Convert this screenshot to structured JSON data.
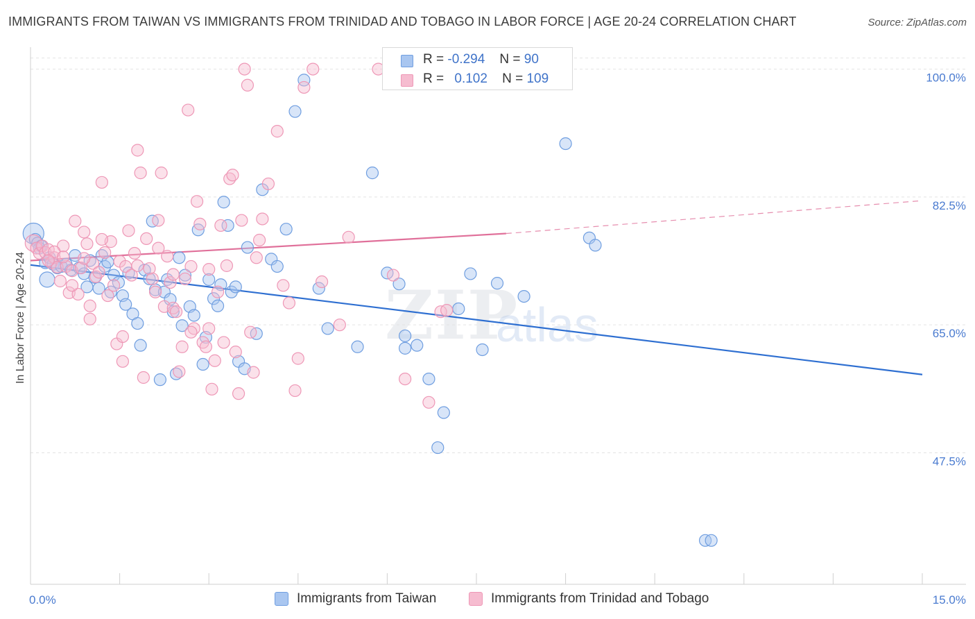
{
  "header": {
    "title": "IMMIGRANTS FROM TAIWAN VS IMMIGRANTS FROM TRINIDAD AND TOBAGO IN LABOR FORCE | AGE 20-24 CORRELATION CHART",
    "source": "Source: ZipAtlas.com"
  },
  "legend": {
    "taiwan": {
      "r_label": "R =",
      "r_value": "-0.294",
      "n_label": "N =",
      "n_value": "90"
    },
    "trinidad": {
      "r_label": "R =",
      "r_value": "0.102",
      "n_label": "N =",
      "n_value": "109"
    }
  },
  "watermark": {
    "zip": "ZIP",
    "atlas": "atlas"
  },
  "colors": {
    "taiwan_fill": "#a9c6f0",
    "taiwan_stroke": "#6f9ee0",
    "taiwan_line": "#2e6fd1",
    "trinidad_fill": "#f6bcd0",
    "trinidad_stroke": "#ee97b6",
    "trinidad_line": "#e0709a",
    "grid": "#e3e3e3",
    "tick_text": "#4a7bd0"
  },
  "chart_data": {
    "type": "scatter",
    "title": "IMMIGRANTS FROM TAIWAN VS IMMIGRANTS FROM TRINIDAD AND TOBAGO IN LABOR FORCE | AGE 20-24 CORRELATION CHART",
    "xlabel": "",
    "ylabel": "In Labor Force | Age 20-24",
    "xlim": [
      0,
      15
    ],
    "ylim": [
      29.5,
      103
    ],
    "x_tick_labels": [
      {
        "value": 0,
        "label": "0.0%"
      },
      {
        "value": 15,
        "label": "15.0%"
      }
    ],
    "y_ticks": [
      {
        "value": 100,
        "label": "100.0%"
      },
      {
        "value": 82.5,
        "label": "82.5%"
      },
      {
        "value": 65,
        "label": "65.0%"
      },
      {
        "value": 47.5,
        "label": "47.5%"
      }
    ],
    "grid": "horizontal dashed",
    "legend_placement": "top-center",
    "series": [
      {
        "name": "Immigrants from Taiwan",
        "color": "#a9c6f0",
        "trend": {
          "x": [
            0,
            15
          ],
          "y": [
            73.2,
            58.2
          ],
          "style": "solid"
        },
        "points": [
          [
            0.05,
            77.5
          ],
          [
            0.08,
            76.7
          ],
          [
            0.12,
            76.2
          ],
          [
            0.15,
            75.5
          ],
          [
            0.18,
            75.8
          ],
          [
            0.25,
            73.5
          ],
          [
            0.28,
            71.2
          ],
          [
            0.32,
            74.2
          ],
          [
            0.38,
            73.3
          ],
          [
            0.45,
            72.8
          ],
          [
            0.52,
            73.0
          ],
          [
            0.6,
            73.3
          ],
          [
            0.68,
            72.5
          ],
          [
            0.75,
            74.5
          ],
          [
            0.82,
            72.8
          ],
          [
            0.9,
            72.0
          ],
          [
            0.95,
            70.2
          ],
          [
            1.0,
            73.8
          ],
          [
            1.08,
            71.5
          ],
          [
            1.15,
            70.0
          ],
          [
            1.2,
            74.5
          ],
          [
            1.25,
            73.0
          ],
          [
            1.3,
            73.6
          ],
          [
            1.35,
            69.5
          ],
          [
            1.4,
            71.8
          ],
          [
            1.48,
            70.8
          ],
          [
            1.55,
            69.0
          ],
          [
            1.6,
            67.8
          ],
          [
            1.65,
            72.1
          ],
          [
            1.72,
            66.5
          ],
          [
            1.8,
            65.2
          ],
          [
            1.85,
            62.2
          ],
          [
            1.92,
            72.5
          ],
          [
            2.0,
            71.3
          ],
          [
            2.05,
            79.2
          ],
          [
            2.1,
            69.8
          ],
          [
            2.18,
            57.5
          ],
          [
            2.25,
            69.5
          ],
          [
            2.3,
            71.2
          ],
          [
            2.35,
            68.5
          ],
          [
            2.4,
            66.8
          ],
          [
            2.45,
            58.3
          ],
          [
            2.5,
            74.2
          ],
          [
            2.55,
            64.9
          ],
          [
            2.6,
            71.8
          ],
          [
            2.68,
            67.5
          ],
          [
            2.75,
            66.3
          ],
          [
            2.82,
            78.0
          ],
          [
            2.9,
            59.6
          ],
          [
            2.95,
            63.3
          ],
          [
            3.0,
            71.2
          ],
          [
            3.08,
            68.6
          ],
          [
            3.15,
            67.6
          ],
          [
            3.2,
            70.5
          ],
          [
            3.25,
            81.8
          ],
          [
            3.32,
            78.6
          ],
          [
            3.38,
            69.5
          ],
          [
            3.45,
            70.2
          ],
          [
            3.5,
            60.0
          ],
          [
            3.6,
            59.0
          ],
          [
            3.65,
            75.6
          ],
          [
            3.8,
            63.8
          ],
          [
            3.9,
            83.5
          ],
          [
            4.05,
            74.0
          ],
          [
            4.15,
            73.0
          ],
          [
            4.3,
            78.1
          ],
          [
            4.45,
            94.2
          ],
          [
            4.6,
            98.5
          ],
          [
            4.85,
            70.0
          ],
          [
            5.0,
            64.5
          ],
          [
            5.5,
            62.0
          ],
          [
            5.75,
            85.8
          ],
          [
            6.0,
            72.1
          ],
          [
            6.2,
            70.6
          ],
          [
            6.3,
            63.5
          ],
          [
            6.5,
            62.2
          ],
          [
            6.7,
            57.6
          ],
          [
            6.85,
            48.2
          ],
          [
            6.95,
            53.0
          ],
          [
            7.2,
            67.2
          ],
          [
            7.4,
            72.0
          ],
          [
            7.6,
            61.6
          ],
          [
            7.85,
            70.7
          ],
          [
            8.3,
            68.9
          ],
          [
            9.0,
            89.8
          ],
          [
            9.4,
            76.9
          ],
          [
            9.5,
            75.9
          ],
          [
            11.35,
            35.5
          ],
          [
            11.45,
            35.5
          ],
          [
            6.3,
            61.8
          ]
        ]
      },
      {
        "name": "Immigrants from Trinidad and Tobago",
        "color": "#f6bcd0",
        "trend": {
          "x": [
            0,
            8
          ],
          "y": [
            73.8,
            77.5
          ],
          "x_dashed_to": 15,
          "y_dashed_to": 82.0
        },
        "points": [
          [
            0.05,
            76.2
          ],
          [
            0.1,
            75.5
          ],
          [
            0.15,
            74.8
          ],
          [
            0.2,
            75.8
          ],
          [
            0.25,
            74.9
          ],
          [
            0.3,
            75.3
          ],
          [
            0.35,
            73.5
          ],
          [
            0.4,
            74.2
          ],
          [
            0.45,
            72.9
          ],
          [
            0.5,
            71.0
          ],
          [
            0.55,
            75.8
          ],
          [
            0.6,
            73.0
          ],
          [
            0.65,
            69.4
          ],
          [
            0.7,
            72.4
          ],
          [
            0.75,
            79.2
          ],
          [
            0.8,
            69.2
          ],
          [
            0.85,
            72.8
          ],
          [
            0.9,
            77.7
          ],
          [
            0.95,
            76.1
          ],
          [
            1.0,
            67.6
          ],
          [
            1.05,
            73.4
          ],
          [
            1.1,
            71.6
          ],
          [
            1.15,
            72.2
          ],
          [
            1.2,
            84.5
          ],
          [
            1.25,
            74.9
          ],
          [
            1.3,
            69.0
          ],
          [
            1.35,
            76.4
          ],
          [
            1.4,
            70.4
          ],
          [
            1.45,
            62.4
          ],
          [
            1.5,
            73.7
          ],
          [
            1.55,
            60.0
          ],
          [
            1.6,
            73.0
          ],
          [
            1.65,
            77.9
          ],
          [
            1.7,
            71.8
          ],
          [
            1.75,
            74.8
          ],
          [
            1.8,
            88.9
          ],
          [
            1.85,
            85.8
          ],
          [
            1.9,
            57.8
          ],
          [
            1.95,
            76.8
          ],
          [
            2.0,
            72.7
          ],
          [
            2.05,
            71.3
          ],
          [
            2.1,
            69.5
          ],
          [
            2.15,
            79.3
          ],
          [
            2.2,
            85.8
          ],
          [
            2.25,
            67.5
          ],
          [
            2.3,
            74.4
          ],
          [
            2.35,
            70.8
          ],
          [
            2.4,
            67.3
          ],
          [
            2.45,
            66.8
          ],
          [
            2.5,
            58.6
          ],
          [
            2.55,
            62.0
          ],
          [
            2.6,
            71.3
          ],
          [
            2.65,
            94.4
          ],
          [
            2.7,
            73.0
          ],
          [
            2.75,
            64.5
          ],
          [
            2.8,
            81.9
          ],
          [
            2.85,
            78.8
          ],
          [
            2.9,
            62.6
          ],
          [
            2.95,
            62.0
          ],
          [
            3.0,
            64.5
          ],
          [
            3.05,
            56.2
          ],
          [
            3.1,
            60.1
          ],
          [
            3.15,
            69.5
          ],
          [
            3.2,
            78.6
          ],
          [
            3.25,
            62.6
          ],
          [
            3.3,
            73.1
          ],
          [
            3.35,
            85.0
          ],
          [
            3.4,
            85.5
          ],
          [
            3.45,
            61.3
          ],
          [
            3.5,
            55.6
          ],
          [
            3.55,
            79.3
          ],
          [
            3.6,
            100.0
          ],
          [
            3.65,
            97.8
          ],
          [
            3.7,
            64.0
          ],
          [
            3.75,
            58.5
          ],
          [
            3.8,
            74.2
          ],
          [
            3.85,
            76.6
          ],
          [
            3.9,
            79.5
          ],
          [
            4.0,
            84.3
          ],
          [
            4.15,
            91.5
          ],
          [
            4.25,
            70.4
          ],
          [
            4.35,
            68.0
          ],
          [
            4.45,
            56.0
          ],
          [
            4.5,
            60.4
          ],
          [
            4.6,
            97.5
          ],
          [
            4.75,
            100.0
          ],
          [
            4.9,
            70.9
          ],
          [
            5.35,
            77.0
          ],
          [
            5.85,
            100.0
          ],
          [
            6.1,
            71.8
          ],
          [
            6.3,
            57.6
          ],
          [
            6.7,
            54.4
          ],
          [
            6.9,
            66.8
          ],
          [
            0.4,
            75.0
          ],
          [
            0.55,
            74.3
          ],
          [
            0.3,
            73.8
          ],
          [
            1.2,
            76.7
          ],
          [
            1.8,
            73.1
          ],
          [
            2.15,
            75.5
          ],
          [
            2.4,
            71.9
          ],
          [
            6.5,
            100.0
          ],
          [
            7.0,
            67.0
          ],
          [
            5.2,
            65.0
          ],
          [
            1.0,
            65.8
          ],
          [
            1.55,
            63.4
          ],
          [
            2.7,
            64.0
          ],
          [
            3.0,
            72.6
          ],
          [
            0.7,
            70.4
          ],
          [
            0.9,
            74.1
          ]
        ]
      }
    ]
  },
  "bottom_legend": {
    "taiwan_label": "Immigrants from Taiwan",
    "trinidad_label": "Immigrants from Trinidad and Tobago"
  }
}
